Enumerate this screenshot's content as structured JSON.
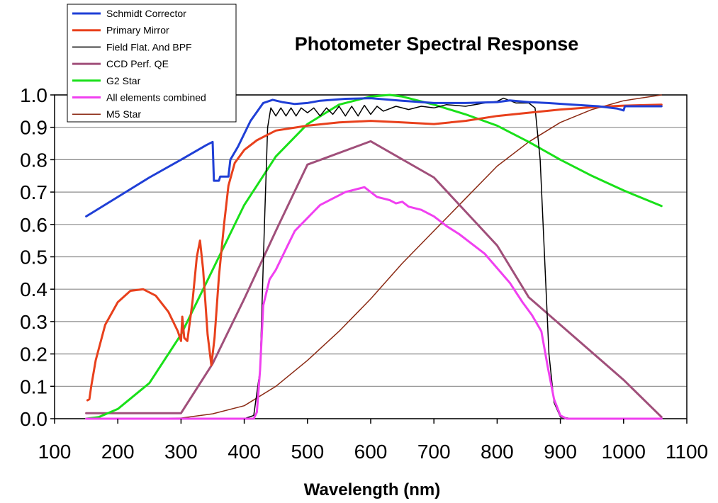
{
  "chart_data": {
    "type": "line",
    "title": "Photometer Spectral Response",
    "xlabel": "Wavelength (nm)",
    "ylabel": "",
    "xlim": [
      100,
      1100
    ],
    "ylim": [
      0.0,
      1.0
    ],
    "x_ticks": [
      "100",
      "200",
      "300",
      "400",
      "500",
      "600",
      "700",
      "800",
      "900",
      "1000",
      "1100"
    ],
    "y_ticks": [
      "0.0",
      "0.1",
      "0.2",
      "0.3",
      "0.4",
      "0.5",
      "0.6",
      "0.7",
      "0.8",
      "0.9",
      "1.0"
    ],
    "grid": "horizontal",
    "legend_position": "top-left",
    "series": [
      {
        "name": "Schmidt Corrector",
        "color": "#1f3fd6",
        "width": 3,
        "points": [
          [
            150,
            0.625
          ],
          [
            200,
            0.685
          ],
          [
            250,
            0.745
          ],
          [
            300,
            0.8
          ],
          [
            340,
            0.845
          ],
          [
            350,
            0.855
          ],
          [
            352,
            0.735
          ],
          [
            360,
            0.735
          ],
          [
            362,
            0.748
          ],
          [
            375,
            0.748
          ],
          [
            378,
            0.8
          ],
          [
            390,
            0.84
          ],
          [
            410,
            0.92
          ],
          [
            430,
            0.975
          ],
          [
            445,
            0.985
          ],
          [
            460,
            0.978
          ],
          [
            480,
            0.972
          ],
          [
            500,
            0.975
          ],
          [
            520,
            0.982
          ],
          [
            560,
            0.988
          ],
          [
            600,
            0.99
          ],
          [
            650,
            0.982
          ],
          [
            700,
            0.975
          ],
          [
            750,
            0.975
          ],
          [
            800,
            0.978
          ],
          [
            820,
            0.983
          ],
          [
            850,
            0.978
          ],
          [
            880,
            0.975
          ],
          [
            920,
            0.97
          ],
          [
            960,
            0.965
          ],
          [
            990,
            0.958
          ],
          [
            1000,
            0.952
          ],
          [
            1002,
            0.965
          ],
          [
            1060,
            0.965
          ]
        ]
      },
      {
        "name": "Primary Mirror",
        "color": "#e8401c",
        "width": 3,
        "points": [
          [
            152,
            0.057
          ],
          [
            155,
            0.06
          ],
          [
            158,
            0.1
          ],
          [
            165,
            0.18
          ],
          [
            180,
            0.29
          ],
          [
            200,
            0.36
          ],
          [
            220,
            0.395
          ],
          [
            240,
            0.4
          ],
          [
            260,
            0.38
          ],
          [
            280,
            0.33
          ],
          [
            295,
            0.27
          ],
          [
            300,
            0.24
          ],
          [
            302,
            0.315
          ],
          [
            305,
            0.25
          ],
          [
            310,
            0.24
          ],
          [
            318,
            0.36
          ],
          [
            325,
            0.5
          ],
          [
            330,
            0.55
          ],
          [
            335,
            0.46
          ],
          [
            342,
            0.26
          ],
          [
            348,
            0.165
          ],
          [
            353,
            0.25
          ],
          [
            360,
            0.44
          ],
          [
            368,
            0.6
          ],
          [
            375,
            0.72
          ],
          [
            385,
            0.79
          ],
          [
            400,
            0.83
          ],
          [
            420,
            0.86
          ],
          [
            450,
            0.89
          ],
          [
            500,
            0.905
          ],
          [
            550,
            0.915
          ],
          [
            600,
            0.92
          ],
          [
            650,
            0.915
          ],
          [
            700,
            0.91
          ],
          [
            750,
            0.92
          ],
          [
            800,
            0.935
          ],
          [
            850,
            0.945
          ],
          [
            900,
            0.955
          ],
          [
            950,
            0.962
          ],
          [
            1000,
            0.967
          ],
          [
            1060,
            0.97
          ]
        ]
      },
      {
        "name": "Field Flat. And BPF",
        "color": "#000000",
        "width": 1.5,
        "points": [
          [
            150,
            0.0
          ],
          [
            400,
            0.0
          ],
          [
            415,
            0.01
          ],
          [
            425,
            0.15
          ],
          [
            432,
            0.6
          ],
          [
            437,
            0.9
          ],
          [
            442,
            0.96
          ],
          [
            450,
            0.935
          ],
          [
            458,
            0.96
          ],
          [
            466,
            0.935
          ],
          [
            474,
            0.96
          ],
          [
            482,
            0.935
          ],
          [
            490,
            0.96
          ],
          [
            500,
            0.945
          ],
          [
            510,
            0.96
          ],
          [
            520,
            0.935
          ],
          [
            530,
            0.96
          ],
          [
            540,
            0.94
          ],
          [
            550,
            0.965
          ],
          [
            560,
            0.935
          ],
          [
            570,
            0.965
          ],
          [
            580,
            0.935
          ],
          [
            590,
            0.968
          ],
          [
            600,
            0.94
          ],
          [
            610,
            0.965
          ],
          [
            620,
            0.95
          ],
          [
            640,
            0.965
          ],
          [
            660,
            0.955
          ],
          [
            680,
            0.965
          ],
          [
            700,
            0.96
          ],
          [
            720,
            0.97
          ],
          [
            750,
            0.965
          ],
          [
            780,
            0.975
          ],
          [
            800,
            0.98
          ],
          [
            810,
            0.99
          ],
          [
            830,
            0.975
          ],
          [
            850,
            0.975
          ],
          [
            860,
            0.96
          ],
          [
            868,
            0.8
          ],
          [
            875,
            0.5
          ],
          [
            882,
            0.2
          ],
          [
            890,
            0.05
          ],
          [
            900,
            0.005
          ],
          [
            920,
            0.0
          ],
          [
            1060,
            0.0
          ]
        ]
      },
      {
        "name": "CCD Perf. QE",
        "color": "#a04f7a",
        "width": 3,
        "points": [
          [
            150,
            0.017
          ],
          [
            300,
            0.017
          ],
          [
            350,
            0.17
          ],
          [
            400,
            0.37
          ],
          [
            450,
            0.58
          ],
          [
            500,
            0.785
          ],
          [
            600,
            0.857
          ],
          [
            700,
            0.745
          ],
          [
            800,
            0.535
          ],
          [
            850,
            0.375
          ],
          [
            900,
            0.29
          ],
          [
            1000,
            0.12
          ],
          [
            1060,
            0.005
          ]
        ]
      },
      {
        "name": "G2 Star",
        "color": "#19e019",
        "width": 3,
        "points": [
          [
            150,
            0.0
          ],
          [
            170,
            0.005
          ],
          [
            200,
            0.03
          ],
          [
            250,
            0.11
          ],
          [
            300,
            0.26
          ],
          [
            350,
            0.46
          ],
          [
            400,
            0.66
          ],
          [
            450,
            0.81
          ],
          [
            500,
            0.91
          ],
          [
            550,
            0.97
          ],
          [
            600,
            0.995
          ],
          [
            630,
            1.0
          ],
          [
            650,
            0.995
          ],
          [
            700,
            0.97
          ],
          [
            750,
            0.94
          ],
          [
            800,
            0.905
          ],
          [
            850,
            0.855
          ],
          [
            900,
            0.8
          ],
          [
            950,
            0.75
          ],
          [
            1000,
            0.705
          ],
          [
            1060,
            0.657
          ]
        ]
      },
      {
        "name": "All elements combined",
        "color": "#f040f0",
        "width": 3,
        "points": [
          [
            150,
            0.0
          ],
          [
            415,
            0.0
          ],
          [
            420,
            0.02
          ],
          [
            425,
            0.15
          ],
          [
            430,
            0.35
          ],
          [
            440,
            0.43
          ],
          [
            450,
            0.46
          ],
          [
            460,
            0.5
          ],
          [
            470,
            0.54
          ],
          [
            480,
            0.58
          ],
          [
            490,
            0.6
          ],
          [
            500,
            0.62
          ],
          [
            510,
            0.64
          ],
          [
            520,
            0.66
          ],
          [
            530,
            0.67
          ],
          [
            540,
            0.68
          ],
          [
            550,
            0.69
          ],
          [
            560,
            0.7
          ],
          [
            570,
            0.705
          ],
          [
            580,
            0.71
          ],
          [
            590,
            0.715
          ],
          [
            600,
            0.7
          ],
          [
            610,
            0.685
          ],
          [
            620,
            0.68
          ],
          [
            630,
            0.675
          ],
          [
            640,
            0.665
          ],
          [
            650,
            0.67
          ],
          [
            660,
            0.655
          ],
          [
            680,
            0.645
          ],
          [
            700,
            0.625
          ],
          [
            720,
            0.595
          ],
          [
            740,
            0.57
          ],
          [
            760,
            0.54
          ],
          [
            780,
            0.51
          ],
          [
            800,
            0.465
          ],
          [
            820,
            0.42
          ],
          [
            840,
            0.36
          ],
          [
            855,
            0.32
          ],
          [
            870,
            0.27
          ],
          [
            880,
            0.16
          ],
          [
            890,
            0.06
          ],
          [
            900,
            0.01
          ],
          [
            910,
            0.0
          ],
          [
            1060,
            0.0
          ]
        ]
      },
      {
        "name": "M5 Star",
        "color": "#8b2a14",
        "width": 1.5,
        "points": [
          [
            150,
            0.0
          ],
          [
            300,
            0.002
          ],
          [
            350,
            0.015
          ],
          [
            400,
            0.04
          ],
          [
            450,
            0.1
          ],
          [
            500,
            0.18
          ],
          [
            550,
            0.27
          ],
          [
            600,
            0.37
          ],
          [
            650,
            0.48
          ],
          [
            700,
            0.58
          ],
          [
            750,
            0.68
          ],
          [
            800,
            0.78
          ],
          [
            850,
            0.855
          ],
          [
            900,
            0.915
          ],
          [
            950,
            0.955
          ],
          [
            1000,
            0.982
          ],
          [
            1060,
            1.0
          ]
        ]
      }
    ]
  }
}
